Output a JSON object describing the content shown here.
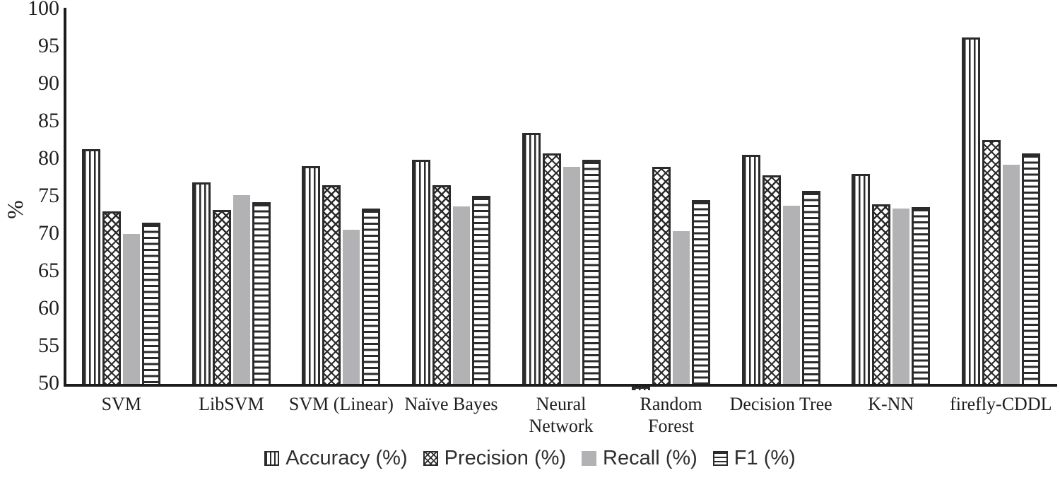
{
  "chart_data": {
    "type": "bar",
    "title": "",
    "xlabel": "",
    "ylabel": "%",
    "ylim": [
      50,
      100
    ],
    "ytick_step": 5,
    "yticks": [
      100,
      95,
      90,
      85,
      80,
      75,
      70,
      65,
      60,
      55,
      50
    ],
    "grid": false,
    "legend_position": "bottom",
    "categories": [
      "SVM",
      "LibSVM",
      "SVM (Linear)",
      "Naïve Bayes",
      "Neural Network",
      "Random Forest",
      "Decision Tree",
      "K-NN",
      "firefly-CDDL"
    ],
    "categories_display": [
      "SVM",
      "LibSVM",
      "SVM (Linear)",
      "Naïve Bayes",
      "Neural\nNetwork",
      "Random\nForest",
      "Decision Tree",
      "K-NN",
      "firefly-CDDL"
    ],
    "series": [
      {
        "key": "accuracy",
        "name": "Accuracy (%)",
        "pattern": "vertical-stripes",
        "values": [
          81.3,
          76.9,
          79.1,
          79.9,
          83.5,
          50.0,
          80.6,
          78.0,
          96.2
        ]
      },
      {
        "key": "precision",
        "name": "Precision (%)",
        "pattern": "crosshatch",
        "values": [
          73.0,
          73.2,
          76.5,
          76.5,
          80.8,
          79.0,
          77.8,
          74.0,
          82.5
        ]
      },
      {
        "key": "recall",
        "name": "Recall (%)",
        "pattern": "solid-gray",
        "values": [
          70.0,
          75.2,
          70.6,
          73.7,
          79.0,
          70.4,
          73.8,
          73.4,
          79.2
        ]
      },
      {
        "key": "f1",
        "name": "F1 (%)",
        "pattern": "horizontal-stripes",
        "values": [
          71.5,
          74.2,
          73.4,
          75.1,
          79.9,
          74.5,
          75.8,
          73.6,
          80.8
        ]
      }
    ],
    "colors": {
      "bar_outline": "#2b2b2b",
      "recall_fill": "#b2b2b4",
      "axis": "#1c1c1c",
      "text": "#1f1f1f",
      "background": "#ffffff"
    },
    "notes": "Random Forest accuracy bar is cut off at the 50% axis baseline (appears as a tiny stub)."
  }
}
